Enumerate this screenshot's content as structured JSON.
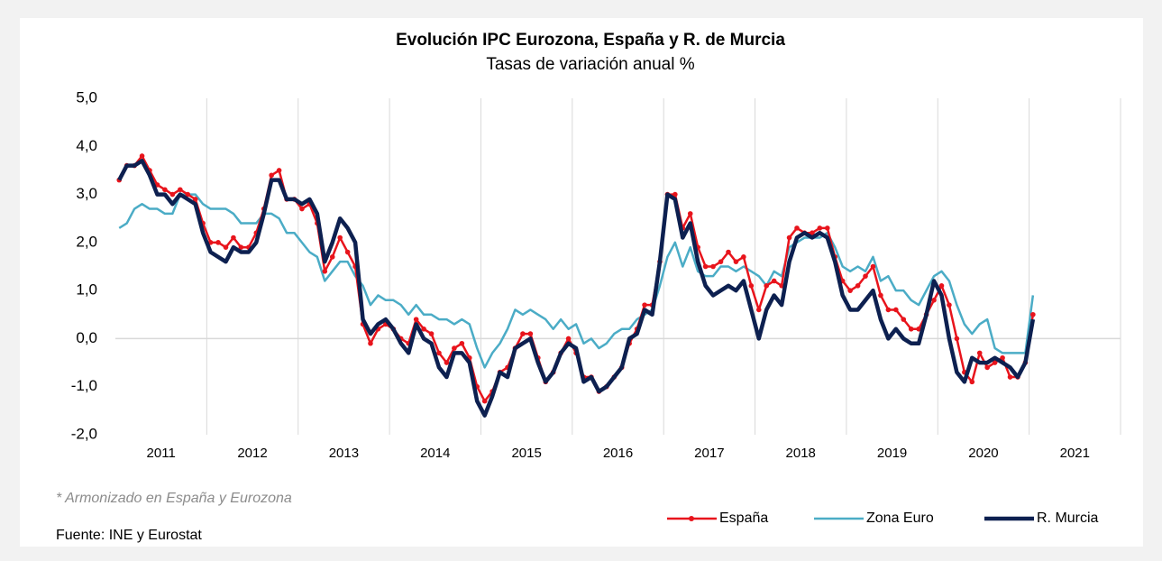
{
  "chart_data": {
    "type": "line",
    "title": "Evolución IPC Eurozona, España y R. de Murcia",
    "subtitle": "Tasas de variación anual %",
    "footnote": "* Armonizado en España y Eurozona",
    "source": "Fuente: INE y Eurostat",
    "categories": [
      null,
      null,
      null,
      null,
      null,
      null,
      "2011",
      null,
      null,
      null,
      null,
      null,
      null,
      null,
      null,
      null,
      null,
      null,
      "2012",
      null,
      null,
      null,
      null,
      null,
      null,
      null,
      null,
      null,
      null,
      null,
      "2013",
      null,
      null,
      null,
      null,
      null,
      null,
      null,
      null,
      null,
      null,
      null,
      "2014",
      null,
      null,
      null,
      null,
      null,
      null,
      null,
      null,
      null,
      null,
      null,
      "2015",
      null,
      null,
      null,
      null,
      null,
      null,
      null,
      null,
      null,
      null,
      null,
      "2016",
      null,
      null,
      null,
      null,
      null,
      null,
      null,
      null,
      null,
      null,
      null,
      "2017",
      null,
      null,
      null,
      null,
      null,
      null,
      null,
      null,
      null,
      null,
      null,
      "2018",
      null,
      null,
      null,
      null,
      null,
      null,
      null,
      null,
      null,
      null,
      null,
      "2019",
      null,
      null,
      null,
      null,
      null,
      null,
      null,
      null,
      null,
      null,
      null,
      "2020",
      null,
      null,
      null,
      null,
      null,
      null,
      null,
      null,
      null,
      null,
      null,
      "2021",
      null,
      null,
      null,
      null,
      null
    ],
    "ylim": [
      -2,
      5
    ],
    "yticks": [
      {
        "value": 5,
        "label": "5,0"
      },
      {
        "value": 4,
        "label": "4,0"
      },
      {
        "value": 3,
        "label": "3,0"
      },
      {
        "value": 2,
        "label": "2,0"
      },
      {
        "value": 1,
        "label": "1,0"
      },
      {
        "value": 0,
        "label": "0,0"
      },
      {
        "value": -1,
        "label": "-1,0"
      },
      {
        "value": -2,
        "label": "-2,0"
      }
    ],
    "legend": "bottom-right",
    "series": [
      {
        "name": "España",
        "color": "#e8141c",
        "markers": true,
        "values": [
          3.3,
          3.6,
          3.6,
          3.8,
          3.5,
          3.2,
          3.1,
          3.0,
          3.1,
          3.0,
          2.9,
          2.4,
          2.0,
          2.0,
          1.9,
          2.1,
          1.9,
          1.9,
          2.2,
          2.7,
          3.4,
          3.5,
          2.9,
          2.9,
          2.7,
          2.8,
          2.4,
          1.4,
          1.7,
          2.1,
          1.8,
          1.5,
          0.3,
          -0.1,
          0.2,
          0.3,
          0.2,
          0.0,
          -0.1,
          0.4,
          0.2,
          0.1,
          -0.3,
          -0.5,
          -0.2,
          -0.1,
          -0.4,
          -1.0,
          -1.3,
          -1.1,
          -0.7,
          -0.6,
          -0.2,
          0.1,
          0.1,
          -0.4,
          -0.9,
          -0.7,
          -0.3,
          0.0,
          -0.3,
          -0.8,
          -0.8,
          -1.1,
          -1.0,
          -0.8,
          -0.6,
          -0.1,
          0.2,
          0.7,
          0.7,
          1.6,
          3.0,
          3.0,
          2.3,
          2.6,
          1.9,
          1.5,
          1.5,
          1.6,
          1.8,
          1.6,
          1.7,
          1.1,
          0.6,
          1.1,
          1.2,
          1.1,
          2.1,
          2.3,
          2.2,
          2.2,
          2.3,
          2.3,
          1.7,
          1.2,
          1.0,
          1.1,
          1.3,
          1.5,
          0.9,
          0.6,
          0.6,
          0.4,
          0.2,
          0.2,
          0.5,
          0.8,
          1.1,
          0.7,
          0.0,
          -0.7,
          -0.9,
          -0.3,
          -0.6,
          -0.5,
          -0.4,
          -0.8,
          -0.8,
          -0.5,
          0.5,
          null,
          null,
          null,
          null,
          null,
          null,
          null,
          null,
          null,
          null,
          null
        ]
      },
      {
        "name": "Zona Euro",
        "color": "#4bacc6",
        "markers": false,
        "values": [
          2.3,
          2.4,
          2.7,
          2.8,
          2.7,
          2.7,
          2.6,
          2.6,
          3.0,
          3.0,
          3.0,
          2.8,
          2.7,
          2.7,
          2.7,
          2.6,
          2.4,
          2.4,
          2.4,
          2.6,
          2.6,
          2.5,
          2.2,
          2.2,
          2.0,
          1.8,
          1.7,
          1.2,
          1.4,
          1.6,
          1.6,
          1.3,
          1.1,
          0.7,
          0.9,
          0.8,
          0.8,
          0.7,
          0.5,
          0.7,
          0.5,
          0.5,
          0.4,
          0.4,
          0.3,
          0.4,
          0.3,
          -0.2,
          -0.6,
          -0.3,
          -0.1,
          0.2,
          0.6,
          0.5,
          0.6,
          0.5,
          0.4,
          0.2,
          0.4,
          0.2,
          0.3,
          -0.1,
          0.0,
          -0.2,
          -0.1,
          0.1,
          0.2,
          0.2,
          0.4,
          0.5,
          0.6,
          1.1,
          1.7,
          2.0,
          1.5,
          1.9,
          1.4,
          1.3,
          1.3,
          1.5,
          1.5,
          1.4,
          1.5,
          1.4,
          1.3,
          1.1,
          1.4,
          1.3,
          1.9,
          2.0,
          2.1,
          2.1,
          2.1,
          2.2,
          1.9,
          1.5,
          1.4,
          1.5,
          1.4,
          1.7,
          1.2,
          1.3,
          1.0,
          1.0,
          0.8,
          0.7,
          1.0,
          1.3,
          1.4,
          1.2,
          0.7,
          0.3,
          0.1,
          0.3,
          0.4,
          -0.2,
          -0.3,
          -0.3,
          -0.3,
          -0.3,
          0.9,
          null,
          null,
          null,
          null,
          null,
          null,
          null,
          null,
          null,
          null,
          null
        ]
      },
      {
        "name": "R. Murcia",
        "color": "#0d2050",
        "markers": false,
        "values": [
          3.3,
          3.6,
          3.6,
          3.7,
          3.4,
          3.0,
          3.0,
          2.8,
          3.0,
          2.9,
          2.8,
          2.2,
          1.8,
          1.7,
          1.6,
          1.9,
          1.8,
          1.8,
          2.0,
          2.6,
          3.3,
          3.3,
          2.9,
          2.9,
          2.8,
          2.9,
          2.6,
          1.6,
          2.0,
          2.5,
          2.3,
          2.0,
          0.4,
          0.1,
          0.3,
          0.4,
          0.2,
          -0.1,
          -0.3,
          0.3,
          0.0,
          -0.1,
          -0.6,
          -0.8,
          -0.3,
          -0.3,
          -0.5,
          -1.3,
          -1.6,
          -1.2,
          -0.7,
          -0.8,
          -0.2,
          -0.1,
          0.0,
          -0.5,
          -0.9,
          -0.7,
          -0.3,
          -0.1,
          -0.2,
          -0.9,
          -0.8,
          -1.1,
          -1.0,
          -0.8,
          -0.6,
          0.0,
          0.1,
          0.6,
          0.5,
          1.6,
          3.0,
          2.9,
          2.1,
          2.4,
          1.6,
          1.1,
          0.9,
          1.0,
          1.1,
          1.0,
          1.2,
          0.6,
          0.0,
          0.6,
          0.9,
          0.7,
          1.6,
          2.1,
          2.2,
          2.1,
          2.2,
          2.1,
          1.6,
          0.9,
          0.6,
          0.6,
          0.8,
          1.0,
          0.4,
          0.0,
          0.2,
          0.0,
          -0.1,
          -0.1,
          0.5,
          1.2,
          0.9,
          0.0,
          -0.7,
          -0.9,
          -0.4,
          -0.5,
          -0.5,
          -0.4,
          -0.5,
          -0.6,
          -0.8,
          -0.5,
          0.4,
          null,
          null,
          null,
          null,
          null,
          null,
          null,
          null,
          null,
          null,
          null
        ]
      }
    ]
  }
}
